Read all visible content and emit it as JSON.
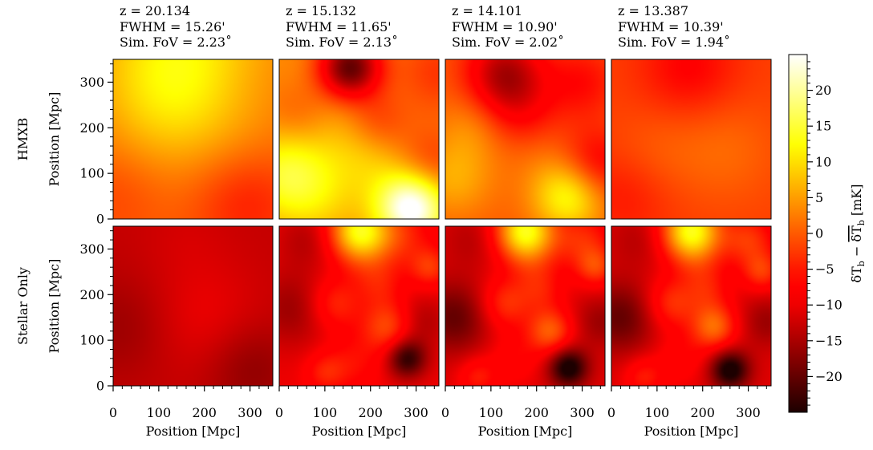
{
  "chart_data": {
    "type": "heatmap",
    "columns": [
      {
        "z": "z = 20.134",
        "fwhm": "FWHM = 15.26'",
        "fov": "Sim. FoV = 2.23˚"
      },
      {
        "z": "z = 15.132",
        "fwhm": "FWHM = 11.65'",
        "fov": "Sim. FoV = 2.13˚"
      },
      {
        "z": "z = 14.101",
        "fwhm": "FWHM = 10.90'",
        "fov": "Sim. FoV = 2.02˚"
      },
      {
        "z": "z = 13.387",
        "fwhm": "FWHM = 10.39'",
        "fov": "Sim. FoV = 1.94˚"
      }
    ],
    "rows": [
      {
        "label": "HMXB"
      },
      {
        "label": "Stellar Only"
      }
    ],
    "xlabel": "Position [Mpc]",
    "ylabel": "Position [Mpc]",
    "xlim": [
      0,
      350
    ],
    "ylim": [
      0,
      350
    ],
    "xticks": [
      0,
      100,
      200,
      300
    ],
    "yticks": [
      0,
      100,
      200,
      300
    ],
    "colorbar": {
      "label": "δT_b − mean(δT_b) [mK]",
      "label_main": "δT",
      "label_sub": "b",
      "label_minus": " − ",
      "label_unit": "  [mK]",
      "range": [
        -25,
        25
      ],
      "ticks": [
        -20,
        -15,
        -10,
        -5,
        0,
        5,
        10,
        15,
        20
      ],
      "colormap": "hot"
    },
    "panels": [
      [
        {
          "base": 0,
          "blobs": [
            [
              175,
              345,
              150,
              13
            ],
            [
              110,
              250,
              90,
              2
            ],
            [
              290,
              40,
              80,
              -5
            ],
            [
              10,
              60,
              70,
              -2
            ],
            [
              280,
              320,
              90,
              -3
            ]
          ]
        },
        {
          "base": 3,
          "blobs": [
            [
              155,
              330,
              50,
              -26
            ],
            [
              290,
              25,
              55,
              24
            ],
            [
              15,
              100,
              70,
              11
            ],
            [
              330,
              120,
              55,
              -6
            ],
            [
              140,
              255,
              90,
              5
            ],
            [
              215,
              215,
              50,
              -7
            ],
            [
              45,
              230,
              55,
              -5
            ],
            [
              345,
              320,
              65,
              -6
            ],
            [
              200,
              130,
              60,
              4
            ],
            [
              90,
              40,
              65,
              4
            ]
          ]
        },
        {
          "base": 0,
          "blobs": [
            [
              130,
              320,
              60,
              -14
            ],
            [
              270,
              50,
              55,
              13
            ],
            [
              20,
              90,
              60,
              6
            ],
            [
              330,
              120,
              55,
              -8
            ],
            [
              165,
              230,
              60,
              -6
            ],
            [
              60,
              200,
              55,
              4
            ],
            [
              300,
              300,
              60,
              -6
            ],
            [
              200,
              150,
              60,
              2
            ]
          ]
        },
        {
          "base": -2,
          "blobs": [
            [
              170,
              330,
              75,
              -5
            ],
            [
              250,
              150,
              80,
              3
            ],
            [
              30,
              50,
              70,
              -3
            ],
            [
              100,
              150,
              70,
              2
            ]
          ]
        }
      ],
      [
        {
          "base": -13,
          "blobs": [
            [
              200,
              150,
              90,
              3
            ],
            [
              160,
              330,
              70,
              1
            ],
            [
              20,
              130,
              80,
              -3
            ],
            [
              300,
              40,
              70,
              -4
            ]
          ]
        },
        {
          "base": -10,
          "blobs": [
            [
              175,
              340,
              45,
              22
            ],
            [
              260,
              330,
              50,
              6
            ],
            [
              240,
              130,
              40,
              9
            ],
            [
              120,
              180,
              40,
              7
            ],
            [
              220,
              220,
              35,
              4
            ],
            [
              330,
              260,
              30,
              7
            ],
            [
              280,
              60,
              30,
              -14
            ],
            [
              100,
              30,
              30,
              5
            ],
            [
              160,
              50,
              45,
              4
            ],
            [
              310,
              140,
              40,
              -5
            ],
            [
              30,
              170,
              60,
              -6
            ],
            [
              60,
              320,
              45,
              -4
            ],
            [
              190,
              270,
              40,
              2
            ]
          ]
        },
        {
          "base": -11,
          "blobs": [
            [
              175,
              340,
              45,
              24
            ],
            [
              300,
              320,
              45,
              7
            ],
            [
              230,
              120,
              35,
              11
            ],
            [
              130,
              180,
              40,
              8
            ],
            [
              210,
              210,
              35,
              5
            ],
            [
              330,
              260,
              30,
              8
            ],
            [
              270,
              40,
              30,
              -16
            ],
            [
              70,
              20,
              30,
              6
            ],
            [
              150,
              60,
              40,
              4
            ],
            [
              20,
              150,
              55,
              -9
            ],
            [
              60,
              320,
              45,
              -3
            ],
            [
              340,
              140,
              40,
              -5
            ],
            [
              190,
              270,
              40,
              3
            ]
          ]
        },
        {
          "base": -11,
          "blobs": [
            [
              175,
              340,
              45,
              24
            ],
            [
              300,
              320,
              40,
              8
            ],
            [
              225,
              130,
              35,
              12
            ],
            [
              130,
              180,
              40,
              8
            ],
            [
              210,
              210,
              35,
              5
            ],
            [
              330,
              250,
              30,
              8
            ],
            [
              260,
              35,
              30,
              -16
            ],
            [
              70,
              20,
              30,
              6
            ],
            [
              150,
              60,
              40,
              4
            ],
            [
              20,
              150,
              55,
              -9
            ],
            [
              60,
              320,
              45,
              -3
            ],
            [
              340,
              140,
              40,
              -5
            ],
            [
              190,
              270,
              40,
              3
            ]
          ]
        }
      ]
    ]
  }
}
